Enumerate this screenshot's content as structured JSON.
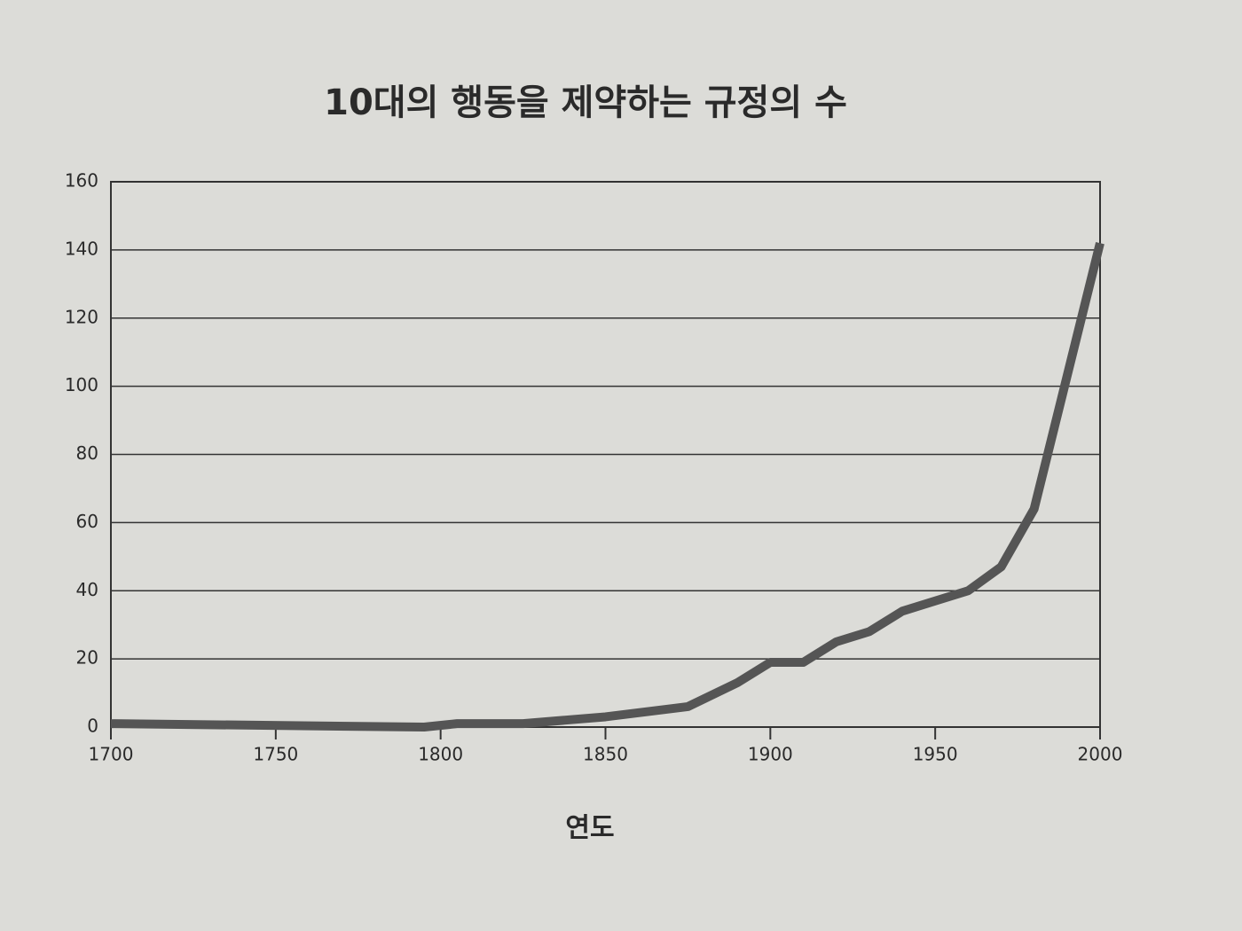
{
  "chart_data": {
    "type": "line",
    "title": "10대의 행동을 제약하는 규정의 수",
    "x_label": "연도",
    "x": [
      1700,
      1795,
      1805,
      1825,
      1850,
      1875,
      1890,
      1900,
      1910,
      1920,
      1930,
      1940,
      1950,
      1960,
      1970,
      1980,
      1990,
      2000
    ],
    "values": [
      1,
      0,
      1,
      1,
      3,
      6,
      13,
      19,
      19,
      25,
      28,
      34,
      37,
      40,
      47,
      64,
      103,
      142
    ],
    "color": "#555555",
    "xlim": [
      1700,
      2000
    ],
    "xticks": [
      1700,
      1750,
      1800,
      1850,
      1900,
      1950,
      2000
    ],
    "ylim": [
      0,
      160
    ],
    "yticks": [
      0,
      20,
      40,
      60,
      80,
      100,
      120,
      140,
      160
    ],
    "grid": true
  }
}
